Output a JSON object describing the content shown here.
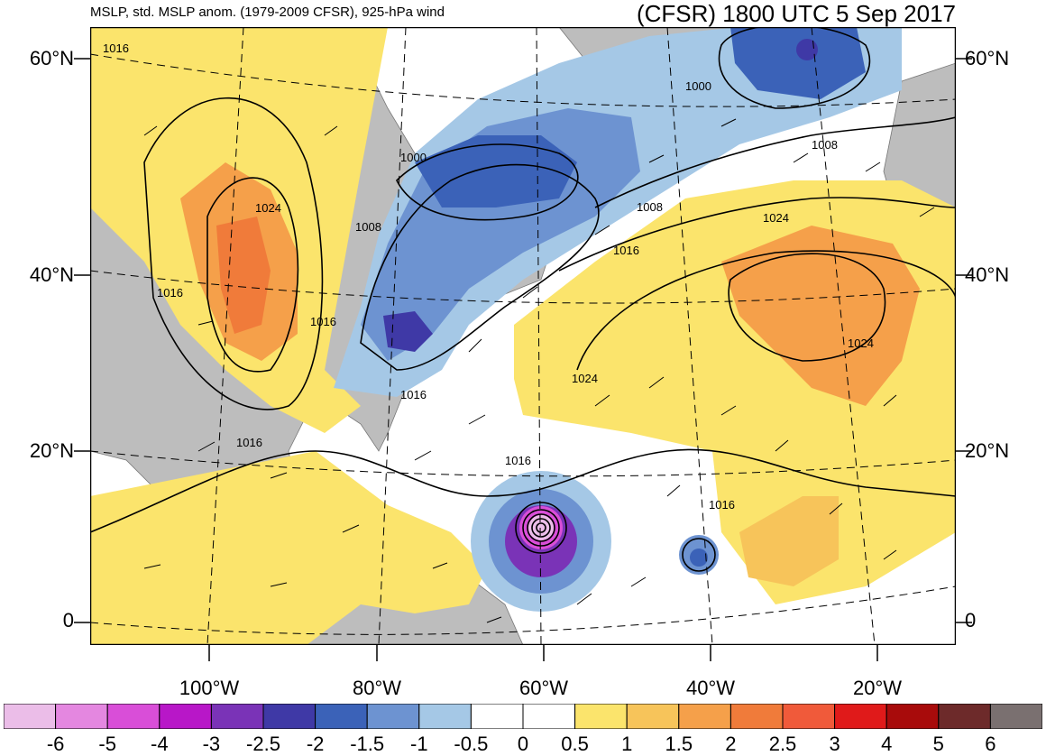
{
  "header": {
    "left_title": "MSLP, std. MSLP anom. (1979-2009 CFSR), 925-hPa wind",
    "right_title": "(CFSR) 1800 UTC 5 Sep 2017"
  },
  "axes": {
    "lat_labels": [
      "60°N",
      "40°N",
      "20°N",
      "0"
    ],
    "lon_labels": [
      "100°W",
      "80°W",
      "60°W",
      "40°W",
      "20°W"
    ]
  },
  "isobar_labels": [
    "1016",
    "1024",
    "1016",
    "1016",
    "1008",
    "1000",
    "1000",
    "1008",
    "1008",
    "1016",
    "1024",
    "1024",
    "1024",
    "1016",
    "1016",
    "1016",
    "1016"
  ],
  "colorbar": {
    "labels": [
      "-6",
      "-5",
      "-4",
      "-3",
      "-2.5",
      "-2",
      "-1.5",
      "-1",
      "-0.5",
      "0",
      "0.5",
      "1",
      "1.5",
      "2",
      "2.5",
      "3",
      "4",
      "5",
      "6"
    ],
    "colors": [
      "#ebbde8",
      "#e487e0",
      "#d94ed8",
      "#b817c8",
      "#7a33b7",
      "#3f39a6",
      "#3b62b8",
      "#6d93d1",
      "#a5c8e6",
      "#ffffff",
      "#ffffff",
      "#fbe46c",
      "#f7c45a",
      "#f5a04a",
      "#f07b3a",
      "#f05a3a",
      "#e01a1a",
      "#a80b0b",
      "#6d2a2a",
      "#7a7070"
    ]
  },
  "colors": {
    "land": "#bdbdbd",
    "ocean_neutral": "#ffffff",
    "positive_anomaly": "#fbe46c",
    "negative_anomaly": "#6d93d1"
  }
}
